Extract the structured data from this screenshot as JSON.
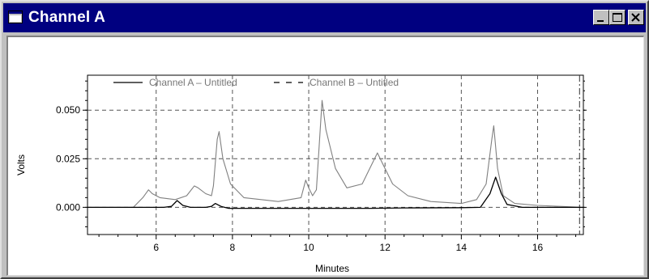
{
  "window": {
    "title": "Channel A",
    "icon": "window-icon",
    "controls": [
      "minimize-icon",
      "maximize-icon",
      "close-icon"
    ]
  },
  "chart_data": {
    "type": "line",
    "xlabel": "Minutes",
    "ylabel": "Volts",
    "xlim": [
      4.2,
      17.2
    ],
    "ylim": [
      -0.014,
      0.068
    ],
    "xticks": [
      6,
      8,
      10,
      12,
      14,
      16
    ],
    "xtick_labels": [
      "6",
      "8",
      "10",
      "12",
      "14",
      "16"
    ],
    "yticks": [
      0.0,
      0.025,
      0.05
    ],
    "ytick_labels": [
      "0.000",
      "0.025",
      "0.050"
    ],
    "grid": true,
    "legend": "top-left",
    "series": [
      {
        "name": "Channel A – Untitled",
        "color": "#000000",
        "style": "solid",
        "x": [
          4.2,
          5.8,
          6.2,
          6.4,
          6.55,
          6.7,
          6.9,
          7.3,
          7.45,
          7.55,
          7.7,
          7.9,
          9.9,
          10.4,
          11.6,
          12.5,
          14.0,
          14.5,
          14.75,
          14.9,
          15.05,
          15.2,
          15.6,
          16.5,
          17.2
        ],
        "y": [
          0.0,
          0.0,
          0.0,
          0.0005,
          0.0035,
          0.001,
          0.0,
          0.0,
          0.0005,
          0.002,
          0.0005,
          -0.0005,
          -0.0005,
          -0.0005,
          -0.0005,
          -0.0003,
          -0.0002,
          0.0,
          0.007,
          0.0155,
          0.007,
          0.0015,
          0.0,
          0.0,
          0.0
        ]
      },
      {
        "name": "Channel B – Untitled",
        "color": "#808080",
        "style": "solid",
        "x": [
          4.2,
          5.4,
          5.65,
          5.8,
          5.9,
          6.1,
          6.5,
          6.8,
          7.0,
          7.1,
          7.3,
          7.45,
          7.5,
          7.6,
          7.65,
          7.75,
          7.95,
          8.3,
          9.2,
          9.8,
          9.92,
          10.0,
          10.1,
          10.2,
          10.3,
          10.35,
          10.45,
          10.7,
          11.0,
          11.4,
          11.6,
          11.8,
          11.95,
          12.2,
          12.6,
          13.2,
          14.0,
          14.4,
          14.65,
          14.8,
          14.85,
          14.95,
          15.1,
          15.4,
          16.0,
          17.2
        ],
        "y": [
          0.0,
          0.0,
          0.005,
          0.009,
          0.007,
          0.005,
          0.004,
          0.006,
          0.011,
          0.01,
          0.007,
          0.006,
          0.011,
          0.035,
          0.039,
          0.025,
          0.012,
          0.005,
          0.003,
          0.005,
          0.014,
          0.01,
          0.006,
          0.009,
          0.04,
          0.055,
          0.04,
          0.02,
          0.01,
          0.012,
          0.02,
          0.028,
          0.022,
          0.012,
          0.006,
          0.003,
          0.002,
          0.004,
          0.012,
          0.035,
          0.042,
          0.02,
          0.006,
          0.002,
          0.001,
          0.0
        ]
      }
    ],
    "annotations": [
      {
        "type": "vline",
        "x": 17.1,
        "style": "dash-dot"
      }
    ]
  }
}
